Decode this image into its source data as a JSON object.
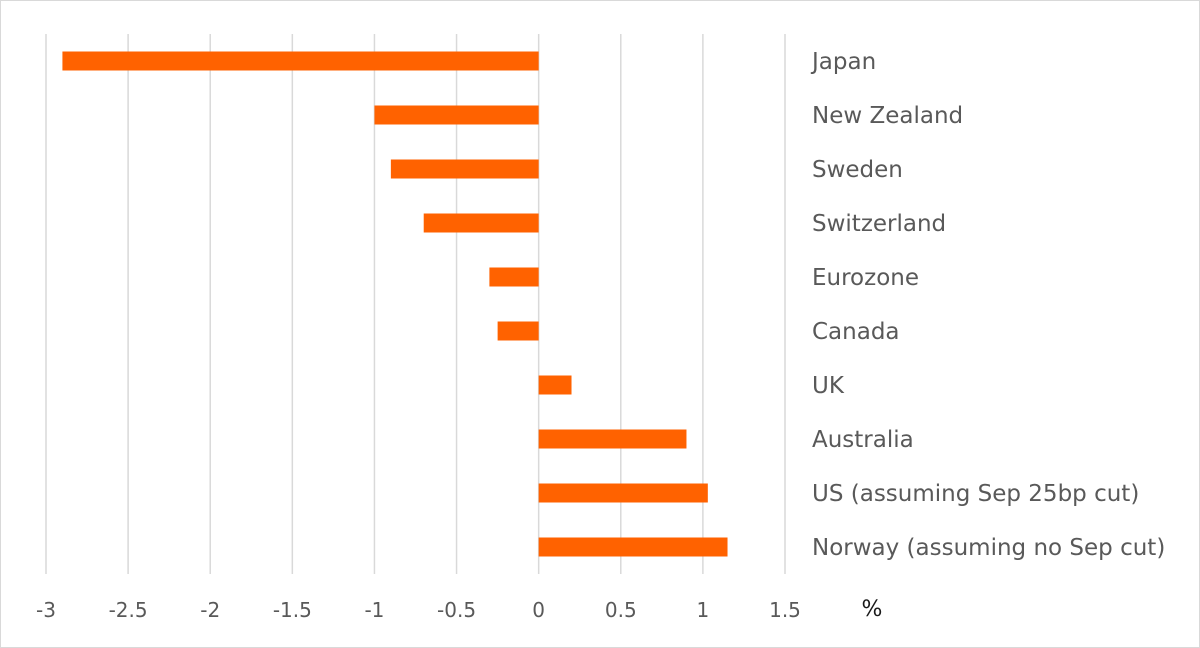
{
  "chart_data": {
    "type": "bar",
    "orientation": "horizontal",
    "categories": [
      "Japan",
      "New Zealand",
      "Sweden",
      "Switzerland",
      "Eurozone",
      "Canada",
      "UK",
      "Australia",
      "US (assuming Sep 25bp cut)",
      "Norway (assuming no Sep cut)"
    ],
    "values": [
      -2.9,
      -1.0,
      -0.9,
      -0.7,
      -0.3,
      -0.25,
      0.2,
      0.9,
      1.03,
      1.15
    ],
    "xlim": [
      -3,
      1.5
    ],
    "xticks": [
      "-3",
      "-2.5",
      "-2",
      "-1.5",
      "-1",
      "-0.5",
      "0",
      "0.5",
      "1",
      "1.5"
    ],
    "xunit": "%",
    "bar_color": "#ff6200",
    "grid": "vertical",
    "category_labels_position": "right"
  }
}
